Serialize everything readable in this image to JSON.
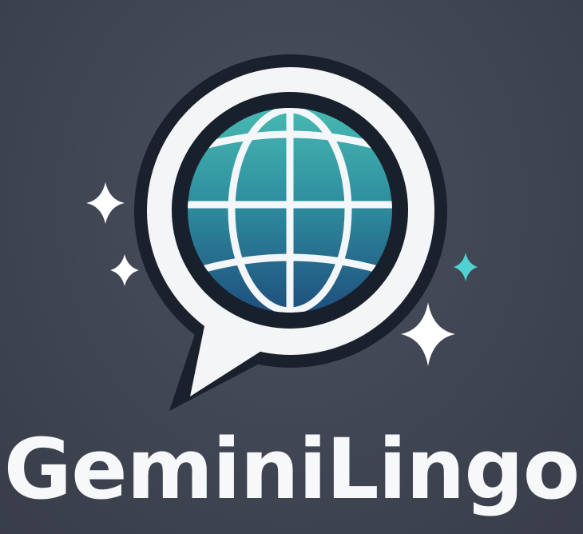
{
  "brand": {
    "name": "GeminiLingo"
  },
  "icons": {
    "logo": "speech-bubble-globe-icon",
    "sparkles": [
      "sparkle-icon",
      "sparkle-icon",
      "sparkle-icon",
      "sparkle-icon"
    ]
  },
  "colors": {
    "background": "#3f4553",
    "bubble": "#f4f6f8",
    "bubble_outline": "#1c222d",
    "globe_top": "#3fb0ae",
    "globe_bottom": "#235a85",
    "sparkle_white": "#ffffff",
    "sparkle_teal": "#4fd3d2",
    "text": "#f7f8fa"
  }
}
